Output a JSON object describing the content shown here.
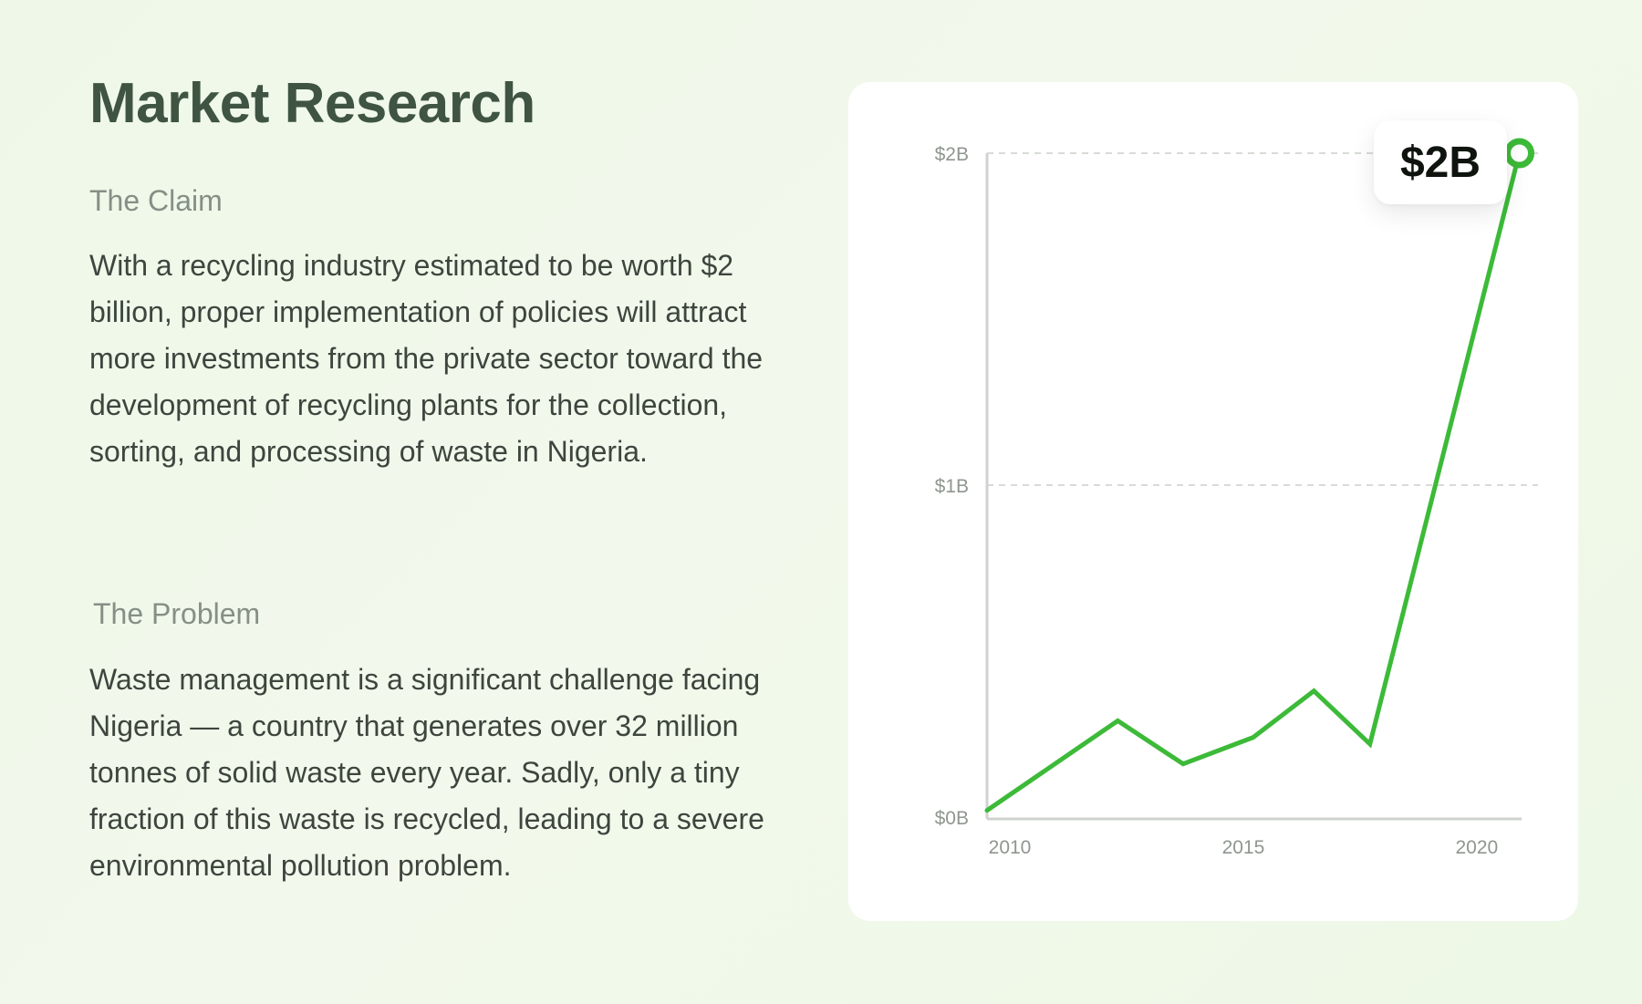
{
  "title": "Market Research",
  "sections": [
    {
      "label": "The Claim",
      "text": "With a recycling industry estimated to be worth $2 billion, proper implementation of policies will attract more investments from the private sector toward the development of recycling plants for the collection, sorting, and processing of waste in Nigeria."
    },
    {
      "label": "The Problem",
      "text": "Waste management is a significant challenge facing Nigeria — a country that generates over 32 million tonnes of solid waste every year. Sadly, only a tiny fraction of this waste is recycled, leading to a severe environmental pollution problem."
    }
  ],
  "colors": {
    "line": "#3cba38",
    "axis": "#cfd3cf",
    "grid": "#d7dcd6",
    "tick": "#8f968f"
  },
  "chart_data": {
    "type": "line",
    "title": "",
    "xlabel": "",
    "ylabel": "",
    "x": [
      2010,
      2012.8,
      2014.2,
      2015.7,
      2017.0,
      2018.2,
      2021.4
    ],
    "values": [
      0.02,
      0.29,
      0.16,
      0.24,
      0.38,
      0.22,
      2.0
    ],
    "xlim": [
      2010,
      2021.8
    ],
    "ylim": [
      0,
      2
    ],
    "y_ticks": [
      {
        "value": 0,
        "label": "$0B"
      },
      {
        "value": 1,
        "label": "$1B"
      },
      {
        "value": 2,
        "label": "$2B"
      }
    ],
    "x_ticks": [
      {
        "value": 2010,
        "label": "2010"
      },
      {
        "value": 2015,
        "label": "2015"
      },
      {
        "value": 2020,
        "label": "2020"
      }
    ],
    "grid": true,
    "highlight": {
      "label": "$2B",
      "value": 2.0
    }
  }
}
